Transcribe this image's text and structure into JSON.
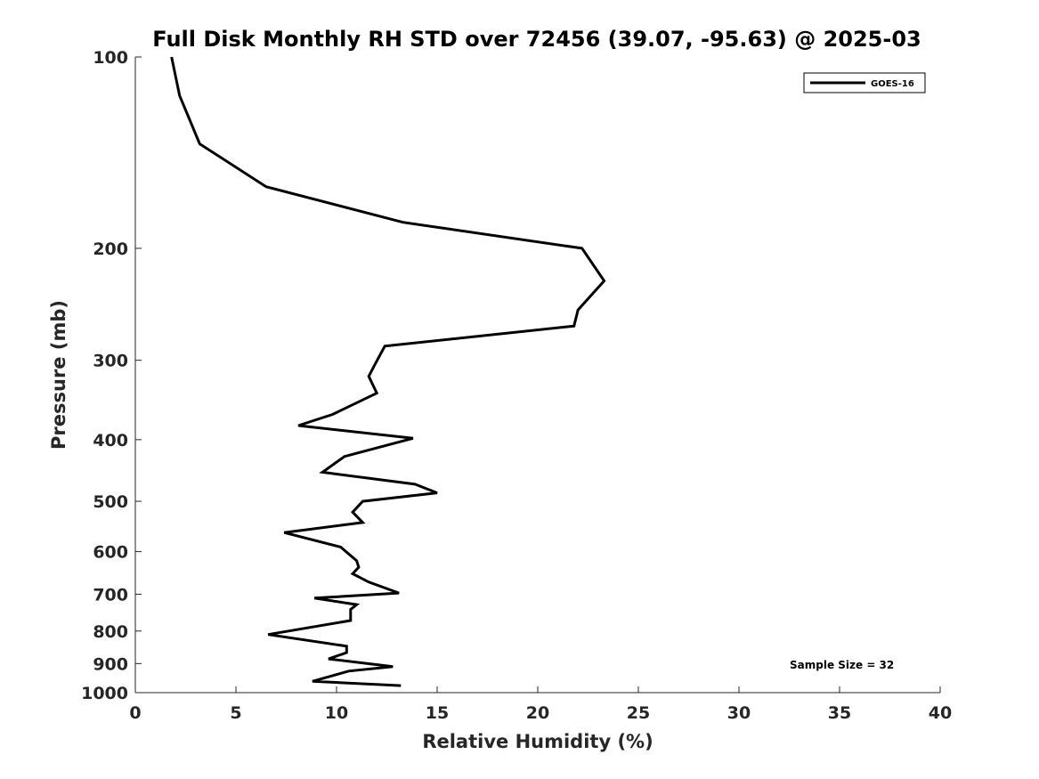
{
  "chart_data": {
    "type": "line",
    "title": "Full Disk Monthly RH STD over 72456 (39.07, -95.63) @ 2025-03",
    "xlabel": "Relative Humidity (%)",
    "ylabel": "Pressure (mb)",
    "xlim": [
      0,
      40
    ],
    "ylim": [
      100,
      1000
    ],
    "y_scale": "log",
    "y_reversed": true,
    "grid": false,
    "legend_position": "top-right",
    "xticks": [
      0,
      5,
      10,
      15,
      20,
      25,
      30,
      35,
      40
    ],
    "yticks": [
      100,
      200,
      300,
      400,
      500,
      600,
      700,
      800,
      900,
      1000
    ],
    "series": [
      {
        "name": "GOES-16",
        "color": "#000000",
        "x": [
          1.8,
          2.2,
          3.2,
          6.5,
          13.3,
          22.2,
          23.3,
          22.0,
          21.8,
          12.4,
          11.9,
          11.6,
          12.0,
          9.8,
          8.1,
          13.8,
          10.4,
          9.3,
          13.9,
          15.0,
          11.3,
          10.8,
          11.3,
          7.4,
          10.2,
          11.0,
          11.1,
          10.8,
          11.6,
          13.1,
          8.9,
          11.0,
          10.7,
          10.7,
          6.6,
          10.5,
          10.5,
          9.6,
          12.8,
          10.6,
          8.8,
          13.2
        ],
        "y": [
          100,
          115,
          137,
          160,
          182,
          200,
          225,
          250,
          265,
          285,
          305,
          318,
          338,
          365,
          380,
          398,
          425,
          450,
          470,
          485,
          500,
          520,
          540,
          560,
          590,
          620,
          635,
          650,
          670,
          697,
          710,
          727,
          740,
          770,
          810,
          845,
          865,
          885,
          910,
          925,
          960,
          975
        ]
      }
    ],
    "annotations": [
      "Sample Size = 32"
    ]
  }
}
